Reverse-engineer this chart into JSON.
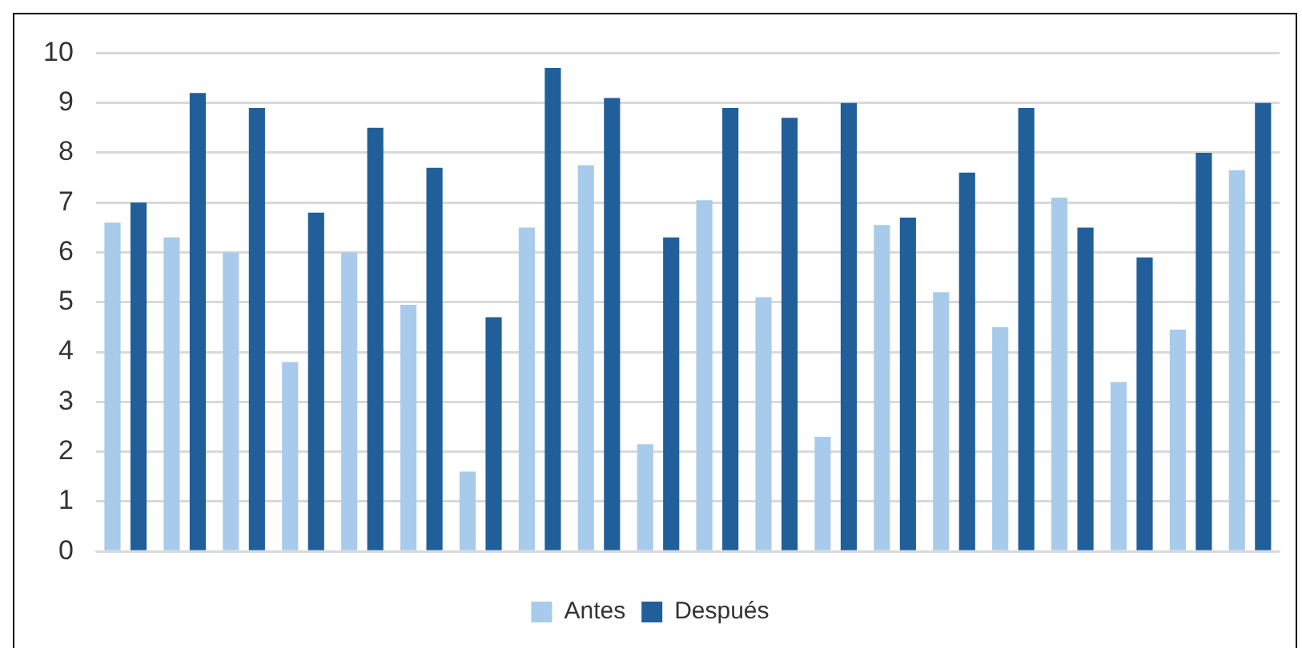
{
  "chart_data": {
    "type": "bar",
    "categories": [
      null,
      null,
      null,
      null,
      null,
      null,
      null,
      null,
      null,
      null,
      null,
      null,
      null,
      null,
      null,
      null,
      null,
      null,
      null,
      null
    ],
    "series": [
      {
        "name": "Antes",
        "color": "#a9cbeb",
        "values": [
          6.6,
          6.3,
          6,
          3.8,
          6,
          4.95,
          1.6,
          6.5,
          7.75,
          2.15,
          7.05,
          5.1,
          2.3,
          6.55,
          5.2,
          4.5,
          7.1,
          3.4,
          4.45,
          7.65
        ]
      },
      {
        "name": "Después",
        "color": "#215f9a",
        "values": [
          7,
          9.2,
          8.9,
          6.8,
          8.5,
          7.7,
          4.7,
          9.7,
          9.1,
          6.3,
          8.9,
          8.7,
          9,
          6.7,
          7.6,
          8.9,
          6.5,
          5.9,
          8,
          9
        ]
      }
    ],
    "ylim": [
      0,
      10
    ],
    "yticks": [
      0,
      1,
      2,
      3,
      4,
      5,
      6,
      7,
      8,
      9,
      10
    ],
    "grid": "y",
    "legend": "bottom"
  }
}
